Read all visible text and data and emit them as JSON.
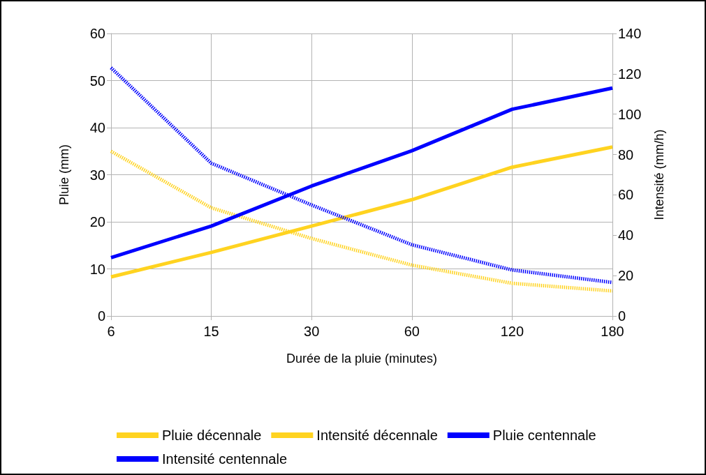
{
  "chart_data": {
    "type": "line",
    "categories": [
      "6",
      "15",
      "30",
      "60",
      "120",
      "180"
    ],
    "xlabel": "Durée de la pluie (minutes)",
    "ylabel": "Pluie (mm)",
    "y2label": "Intensité (mm/h)",
    "ylim": [
      0,
      60
    ],
    "yticks": [
      0,
      10,
      20,
      30,
      40,
      50,
      60
    ],
    "y2lim": [
      0,
      140
    ],
    "y2ticks": [
      0,
      20,
      40,
      60,
      80,
      100,
      120,
      140
    ],
    "grid": true,
    "legend": "bottom",
    "marker": "none",
    "series": [
      {
        "name": "Pluie décennale",
        "color": "#ffd320",
        "line_style": "solid",
        "values": [
          8.3,
          13.5,
          19.1,
          24.7,
          31.6,
          35.9
        ]
      },
      {
        "name": "Intensité décennale",
        "color": "#ffd320",
        "line_style": "dotted",
        "axis": "y2",
        "values": [
          81.6,
          53.6,
          38.4,
          25.2,
          16.2,
          12.4
        ]
      },
      {
        "name": "Pluie centennale",
        "color": "#0000ff",
        "line_style": "solid",
        "values": [
          12.4,
          19.1,
          27.6,
          35.1,
          43.9,
          48.4
        ]
      },
      {
        "name": "Intensité centennale",
        "color": "#0000ff",
        "line_style": "dotted",
        "axis": "y2",
        "values": [
          123,
          75.7,
          55,
          35.3,
          22.8,
          16.6
        ]
      }
    ]
  }
}
